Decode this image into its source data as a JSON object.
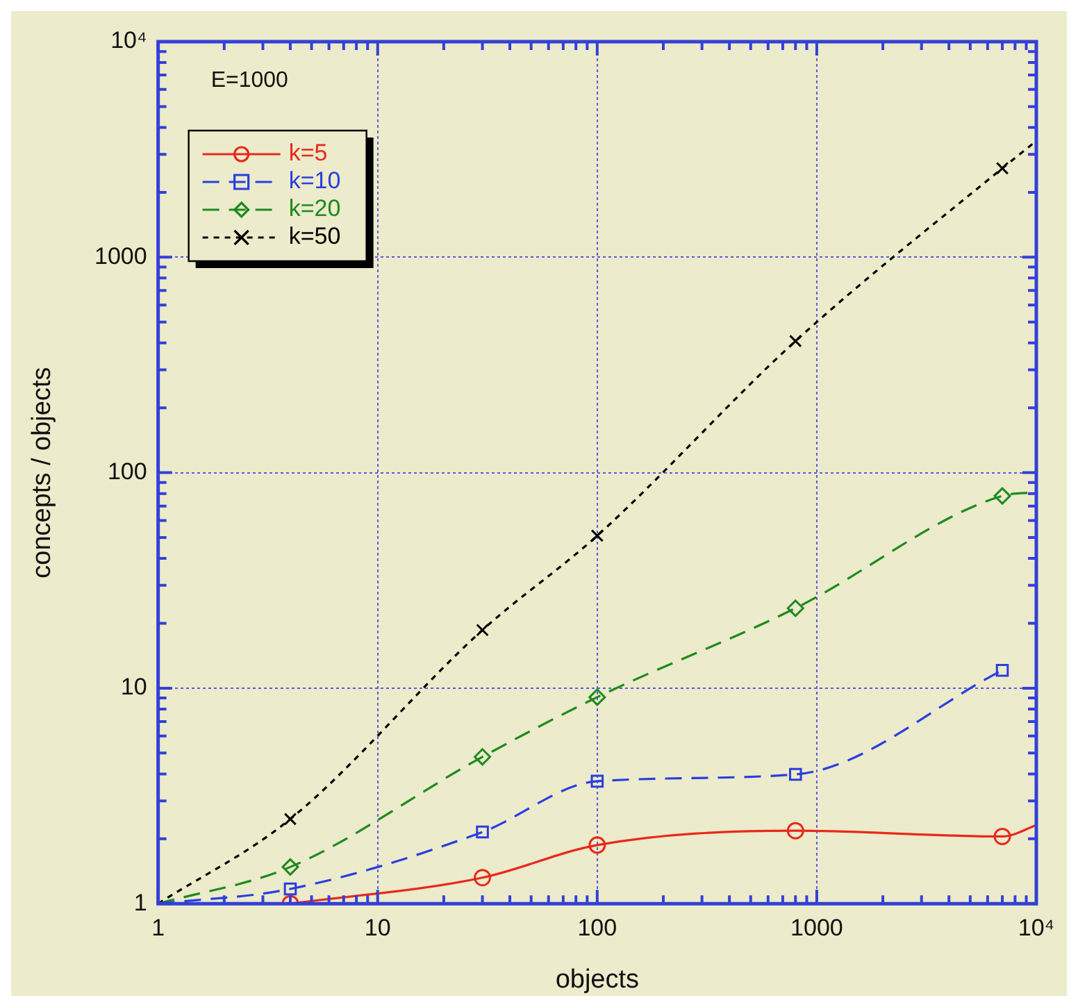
{
  "chart_data": {
    "type": "line",
    "xlabel": "objects",
    "ylabel": "concepts / objects",
    "log": "xy",
    "grid": true,
    "legend": "top left",
    "annotations": [
      "E=1000"
    ],
    "xlim": [
      1,
      10000
    ],
    "ylim": [
      1,
      10000
    ],
    "xticks": [
      1,
      {
        "value": 2,
        "label": null
      },
      {
        "value": 3,
        "label": null
      },
      {
        "value": 4,
        "label": null
      },
      {
        "value": 5,
        "label": null
      },
      {
        "value": 6,
        "label": null
      },
      {
        "value": 7,
        "label": null
      },
      {
        "value": 8,
        "label": null
      },
      {
        "value": 9,
        "label": null
      },
      10,
      {
        "value": 20,
        "label": null
      },
      {
        "value": 30,
        "label": null
      },
      {
        "value": 40,
        "label": null
      },
      {
        "value": 50,
        "label": null
      },
      {
        "value": 60,
        "label": null
      },
      {
        "value": 70,
        "label": null
      },
      {
        "value": 80,
        "label": null
      },
      {
        "value": 90,
        "label": null
      },
      100,
      {
        "value": 200,
        "label": null
      },
      {
        "value": 300,
        "label": null
      },
      {
        "value": 400,
        "label": null
      },
      {
        "value": 500,
        "label": null
      },
      {
        "value": 600,
        "label": null
      },
      {
        "value": 700,
        "label": null
      },
      {
        "value": 800,
        "label": null
      },
      {
        "value": 900,
        "label": null
      },
      1000,
      {
        "value": 2000,
        "label": null
      },
      {
        "value": 3000,
        "label": null
      },
      {
        "value": 4000,
        "label": null
      },
      {
        "value": 5000,
        "label": null
      },
      {
        "value": 6000,
        "label": null
      },
      {
        "value": 7000,
        "label": null
      },
      {
        "value": 8000,
        "label": null
      },
      {
        "value": 9000,
        "label": null
      },
      {
        "value": 10000,
        "label": "10⁴"
      }
    ],
    "yticks": [
      1,
      {
        "value": 2,
        "label": null
      },
      {
        "value": 3,
        "label": null
      },
      {
        "value": 4,
        "label": null
      },
      {
        "value": 5,
        "label": null
      },
      {
        "value": 6,
        "label": null
      },
      {
        "value": 7,
        "label": null
      },
      {
        "value": 8,
        "label": null
      },
      {
        "value": 9,
        "label": null
      },
      10,
      {
        "value": 20,
        "label": null
      },
      {
        "value": 30,
        "label": null
      },
      {
        "value": 40,
        "label": null
      },
      {
        "value": 50,
        "label": null
      },
      {
        "value": 60,
        "label": null
      },
      {
        "value": 70,
        "label": null
      },
      {
        "value": 80,
        "label": null
      },
      {
        "value": 90,
        "label": null
      },
      100,
      {
        "value": 200,
        "label": null
      },
      {
        "value": 300,
        "label": null
      },
      {
        "value": 400,
        "label": null
      },
      {
        "value": 500,
        "label": null
      },
      {
        "value": 600,
        "label": null
      },
      {
        "value": 700,
        "label": null
      },
      {
        "value": 800,
        "label": null
      },
      {
        "value": 900,
        "label": null
      },
      1000,
      {
        "value": 2000,
        "label": null
      },
      {
        "value": 3000,
        "label": null
      },
      {
        "value": 4000,
        "label": null
      },
      {
        "value": 5000,
        "label": null
      },
      {
        "value": 6000,
        "label": null
      },
      {
        "value": 7000,
        "label": null
      },
      {
        "value": 8000,
        "label": null
      },
      {
        "value": 9000,
        "label": null
      },
      {
        "value": 10000,
        "label": "10⁴"
      }
    ],
    "series": [
      {
        "name": "k=5",
        "color": "#e8291c",
        "marker": "circle",
        "line_style": "solid",
        "x": [
          4,
          30,
          100,
          800,
          7000,
          10000
        ],
        "values": [
          1.0,
          1.32,
          1.87,
          2.18,
          2.05,
          2.31
        ]
      },
      {
        "name": "k=10",
        "color": "#2a3ee0",
        "marker": "square",
        "line_style": "dashed",
        "x": [
          1,
          4,
          30,
          100,
          800,
          7000
        ],
        "values": [
          1,
          1.17,
          2.15,
          3.7,
          3.98,
          12.1
        ]
      },
      {
        "name": "k=20",
        "color": "#1e8a1e",
        "marker": "diamond",
        "line_style": "dashed",
        "x": [
          1,
          4,
          30,
          100,
          800,
          7000,
          10000
        ],
        "values": [
          1,
          1.48,
          4.8,
          9.08,
          23.5,
          78,
          81
        ]
      },
      {
        "name": "k=50",
        "color": "#000000",
        "marker": "cross",
        "line_style": "dotted",
        "x": [
          1,
          4,
          30,
          100,
          800,
          7000,
          10000
        ],
        "values": [
          1,
          2.47,
          18.6,
          51,
          408,
          2585,
          3460
        ]
      }
    ]
  }
}
